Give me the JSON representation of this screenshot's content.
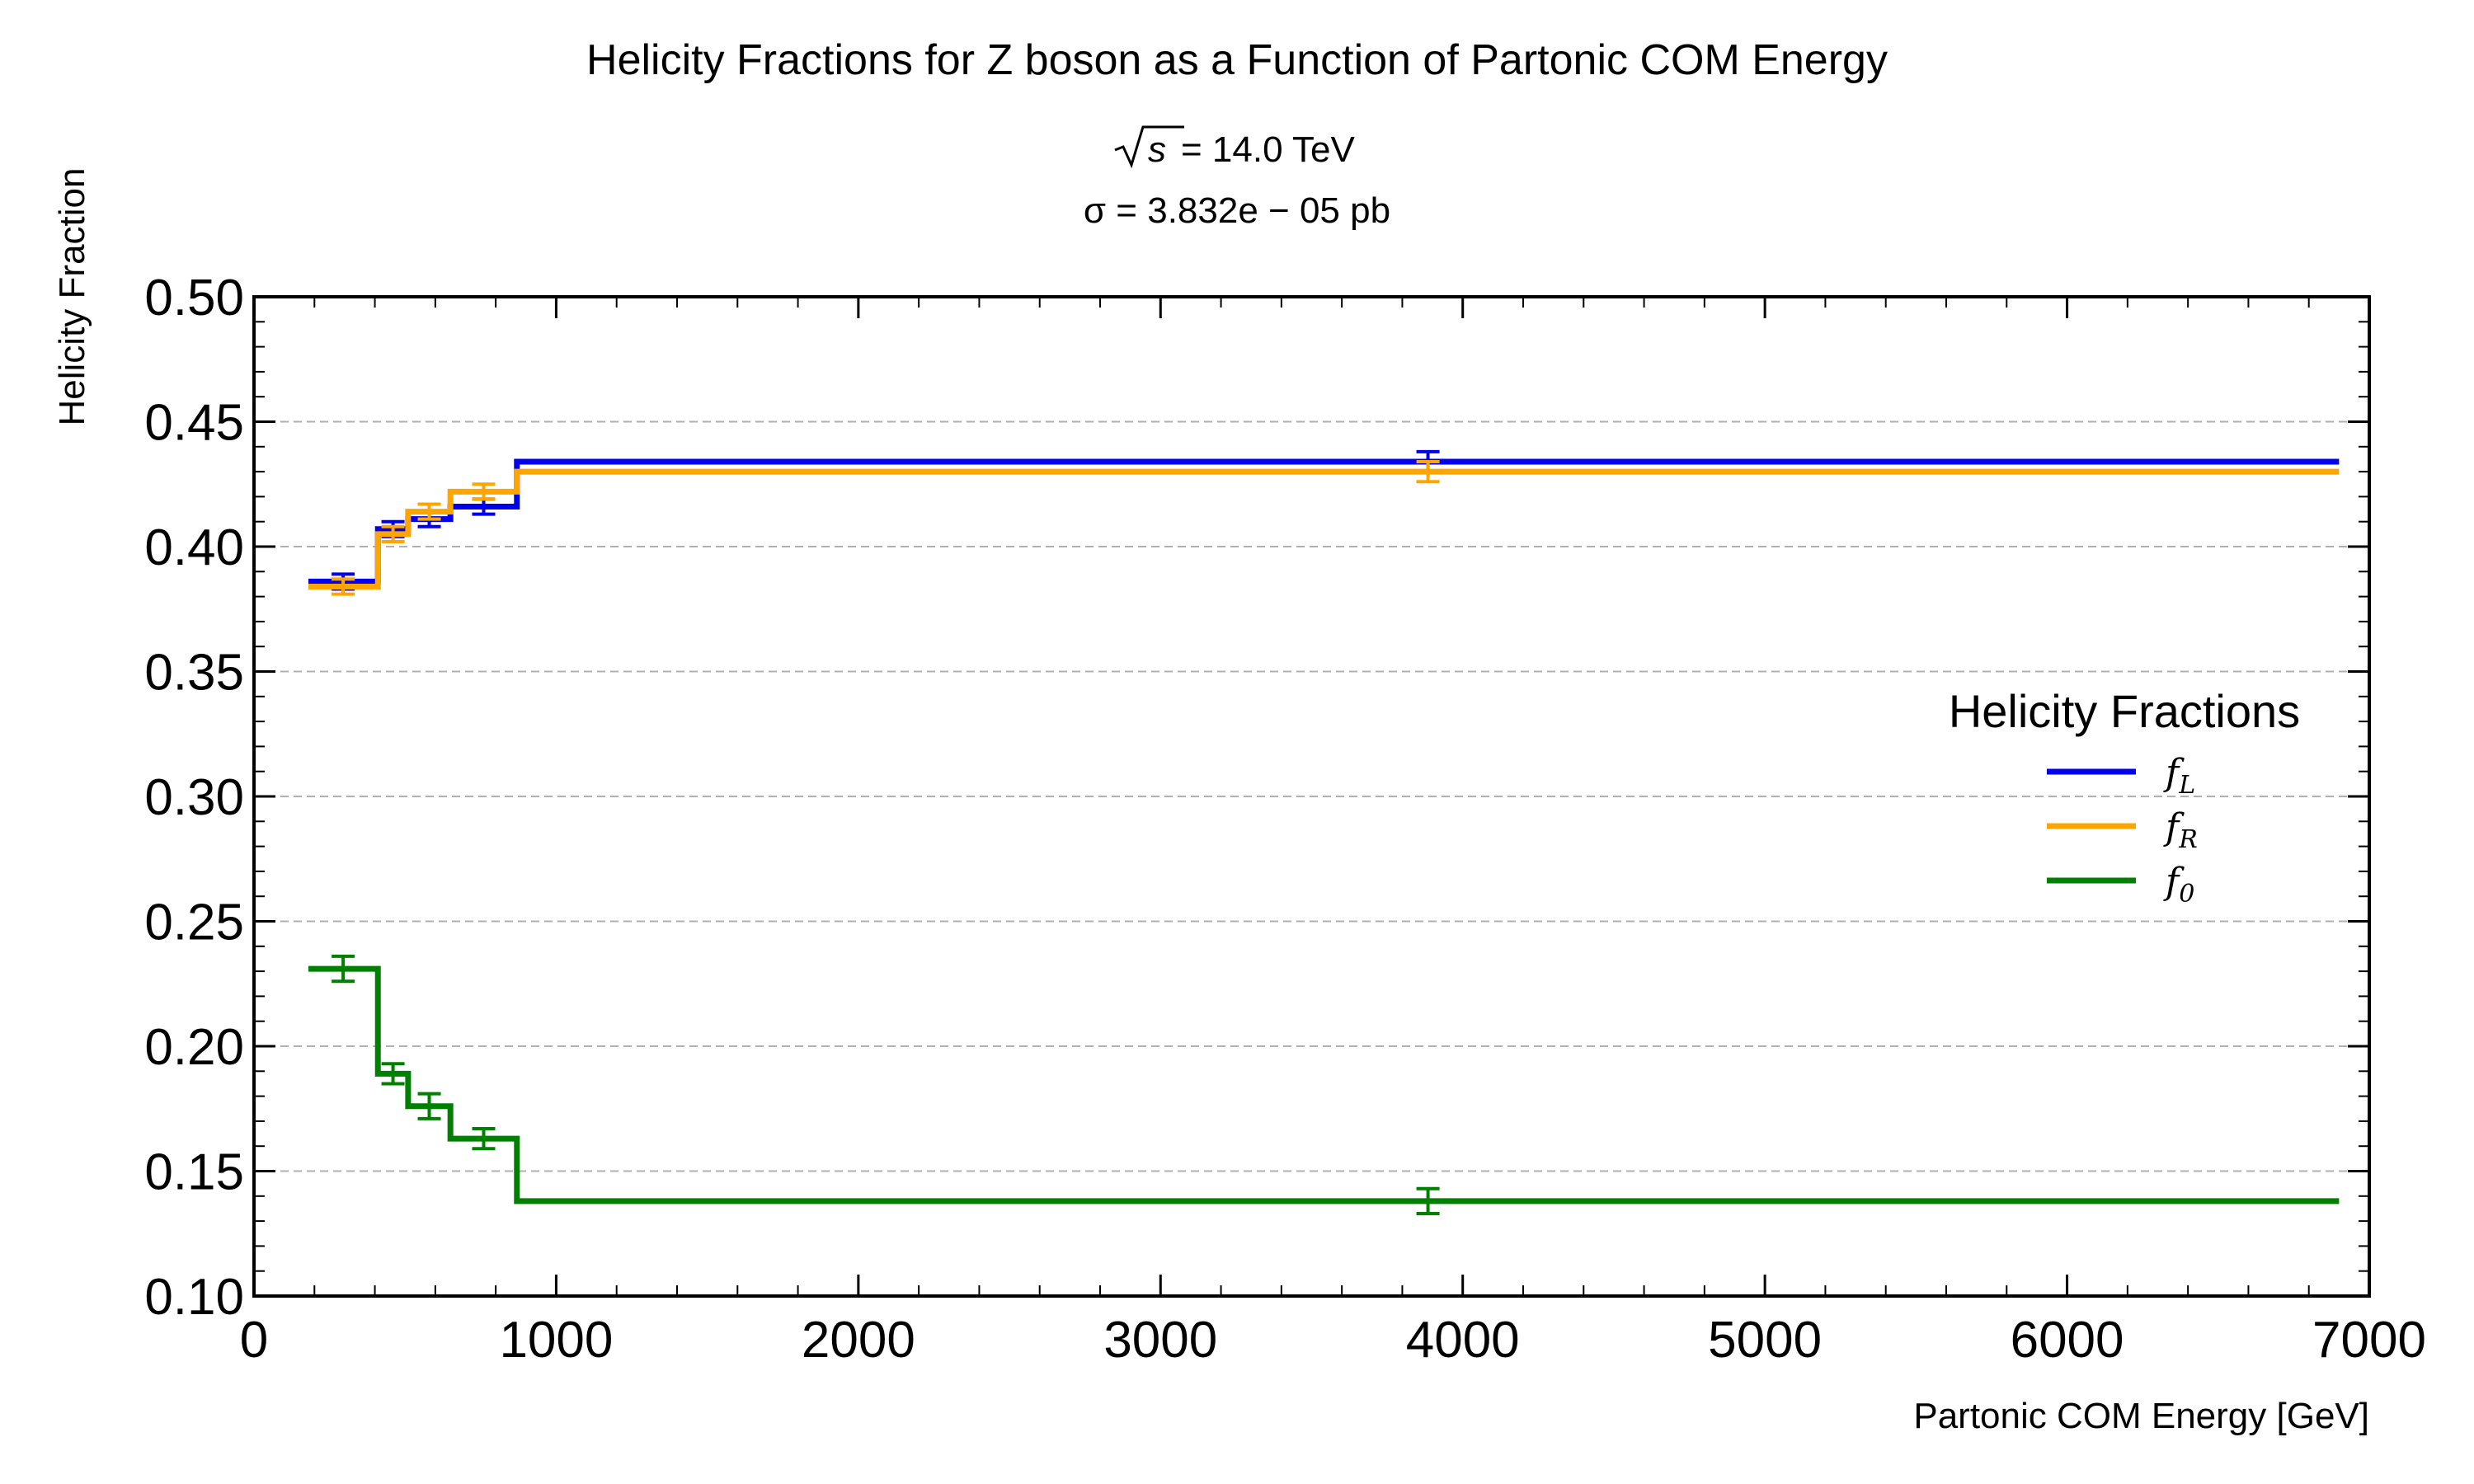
{
  "chart_data": {
    "type": "line",
    "title": "Helicity Fractions for Z boson as a Function of Partonic COM Energy",
    "subtitle_sqrt_s": "= 14.0 TeV",
    "subtitle_sigma": "σ = 3.832e − 05 pb",
    "xlabel": "Partonic COM Energy [GeV]",
    "ylabel": "Helicity Fraction",
    "xlim": [
      0,
      7000
    ],
    "ylim": [
      0.1,
      0.5
    ],
    "xticks": [
      "0",
      "1000",
      "2000",
      "3000",
      "4000",
      "5000",
      "6000",
      "7000"
    ],
    "yticks": [
      "0.10",
      "0.15",
      "0.20",
      "0.25",
      "0.30",
      "0.35",
      "0.40",
      "0.45",
      "0.50"
    ],
    "grid": "horizontal dashed",
    "legend": {
      "title": "Helicity Fractions",
      "placement": "center-right"
    },
    "bin_edges": [
      180,
      410,
      510,
      650,
      870,
      6900
    ],
    "bin_centers": [
      295,
      460,
      580,
      760,
      3885
    ],
    "series": [
      {
        "name": "f_L",
        "label_main": "f",
        "label_sub": "L",
        "color": "#0000ee",
        "values": [
          0.386,
          0.407,
          0.411,
          0.416,
          0.434
        ],
        "errors": [
          0.003,
          0.003,
          0.003,
          0.003,
          0.004
        ]
      },
      {
        "name": "f_R",
        "label_main": "f",
        "label_sub": "R",
        "color": "#ffa500",
        "values": [
          0.384,
          0.405,
          0.414,
          0.422,
          0.43
        ],
        "errors": [
          0.003,
          0.003,
          0.003,
          0.003,
          0.004
        ]
      },
      {
        "name": "f_0",
        "label_main": "f",
        "label_sub": "0",
        "color": "#008000",
        "values": [
          0.231,
          0.189,
          0.176,
          0.163,
          0.138
        ],
        "errors": [
          0.005,
          0.004,
          0.005,
          0.004,
          0.005
        ]
      }
    ]
  }
}
